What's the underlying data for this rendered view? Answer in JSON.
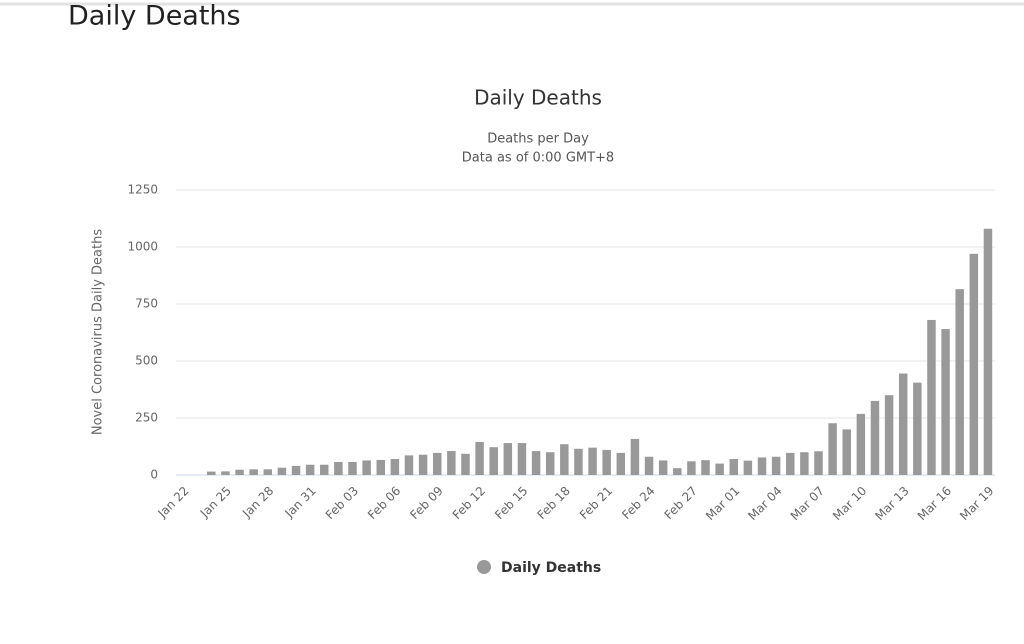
{
  "page": {
    "title": "Daily Deaths"
  },
  "chart_data": {
    "type": "bar",
    "title": "Daily Deaths",
    "subtitle": [
      "Deaths per Day",
      "Data as of 0:00 GMT+8"
    ],
    "y_label": "Novel Coronavirus Daily Deaths",
    "categories": [
      "Jan 22",
      null,
      null,
      "Jan 25",
      null,
      null,
      "Jan 28",
      null,
      null,
      "Jan 31",
      null,
      null,
      "Feb 03",
      null,
      null,
      "Feb 06",
      null,
      null,
      "Feb 09",
      null,
      null,
      "Feb 12",
      null,
      null,
      "Feb 15",
      null,
      null,
      "Feb 18",
      null,
      null,
      "Feb 21",
      null,
      null,
      "Feb 24",
      null,
      null,
      "Feb 27",
      null,
      null,
      "Mar 01",
      null,
      null,
      "Mar 04",
      null,
      null,
      "Mar 07",
      null,
      null,
      "Mar 10",
      null,
      null,
      "Mar 13",
      null,
      null,
      "Mar 16",
      null,
      null,
      "Mar 19"
    ],
    "series": [
      {
        "name": "Daily Deaths",
        "color": "#999999",
        "values": [
          0,
          0,
          15,
          16,
          23,
          25,
          25,
          32,
          40,
          45,
          45,
          57,
          57,
          64,
          66,
          70,
          86,
          89,
          97,
          105,
          93,
          145,
          122,
          140,
          140,
          105,
          100,
          135,
          115,
          120,
          110,
          97,
          158,
          80,
          64,
          30,
          60,
          65,
          50,
          70,
          63,
          77,
          80,
          97,
          100,
          104,
          227,
          200,
          268,
          325,
          350,
          445,
          405,
          680,
          640,
          815,
          970,
          1080
        ]
      }
    ],
    "ylim": [
      0,
      1250
    ],
    "yticks": [
      0,
      250,
      500,
      750,
      1000,
      1250
    ],
    "grid": true,
    "legend": "bottom"
  }
}
